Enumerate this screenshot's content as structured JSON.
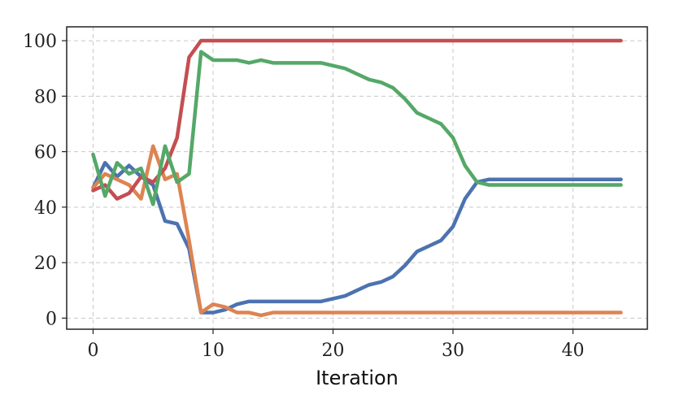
{
  "chart_data": {
    "type": "line",
    "xlabel": "Iteration",
    "ylabel": "",
    "xlim": [
      -2.2,
      46.2
    ],
    "ylim": [
      -4,
      105
    ],
    "xticks": [
      0,
      10,
      20,
      30,
      40
    ],
    "yticks": [
      0,
      20,
      40,
      60,
      80,
      100
    ],
    "grid": true,
    "series": [
      {
        "color": "#4c72b0",
        "x": [
          0,
          1,
          2,
          3,
          4,
          5,
          6,
          7,
          8,
          9,
          10,
          11,
          12,
          13,
          14,
          15,
          16,
          17,
          18,
          19,
          20,
          21,
          22,
          23,
          24,
          25,
          26,
          27,
          28,
          29,
          30,
          31,
          32,
          33,
          34,
          35,
          36,
          37,
          38,
          39,
          40,
          41,
          42,
          43,
          44
        ],
        "values": [
          47,
          56,
          51,
          55,
          51,
          48,
          35,
          34,
          25,
          2,
          2,
          3,
          5,
          6,
          6,
          6,
          6,
          6,
          6,
          6,
          7,
          8,
          10,
          12,
          13,
          15,
          19,
          24,
          26,
          28,
          33,
          43,
          49,
          50,
          50,
          50,
          50,
          50,
          50,
          50,
          50,
          50,
          50,
          50,
          50
        ]
      },
      {
        "color": "#dd8452",
        "x": [
          0,
          1,
          2,
          3,
          4,
          5,
          6,
          7,
          8,
          9,
          10,
          11,
          12,
          13,
          14,
          15,
          16,
          17,
          18,
          19,
          20,
          21,
          22,
          23,
          24,
          25,
          26,
          27,
          28,
          29,
          30,
          31,
          32,
          33,
          34,
          35,
          36,
          37,
          38,
          39,
          40,
          41,
          42,
          43,
          44
        ],
        "values": [
          47,
          52,
          50,
          48,
          43,
          62,
          50,
          52,
          28,
          2,
          5,
          4,
          2,
          2,
          1,
          2,
          2,
          2,
          2,
          2,
          2,
          2,
          2,
          2,
          2,
          2,
          2,
          2,
          2,
          2,
          2,
          2,
          2,
          2,
          2,
          2,
          2,
          2,
          2,
          2,
          2,
          2,
          2,
          2,
          2
        ]
      },
      {
        "color": "#c44e52",
        "x": [
          0,
          1,
          2,
          3,
          4,
          5,
          6,
          7,
          8,
          9,
          10,
          11,
          12,
          13,
          14,
          15,
          16,
          17,
          18,
          19,
          20,
          21,
          22,
          23,
          24,
          25,
          26,
          27,
          28,
          29,
          30,
          31,
          32,
          33,
          34,
          35,
          36,
          37,
          38,
          39,
          40,
          41,
          42,
          43,
          44
        ],
        "values": [
          46,
          48,
          43,
          45,
          51,
          49,
          54,
          65,
          94,
          100,
          100,
          100,
          100,
          100,
          100,
          100,
          100,
          100,
          100,
          100,
          100,
          100,
          100,
          100,
          100,
          100,
          100,
          100,
          100,
          100,
          100,
          100,
          100,
          100,
          100,
          100,
          100,
          100,
          100,
          100,
          100,
          100,
          100,
          100,
          100
        ]
      },
      {
        "color": "#55a868",
        "x": [
          0,
          1,
          2,
          3,
          4,
          5,
          6,
          7,
          8,
          9,
          10,
          11,
          12,
          13,
          14,
          15,
          16,
          17,
          18,
          19,
          20,
          21,
          22,
          23,
          24,
          25,
          26,
          27,
          28,
          29,
          30,
          31,
          32,
          33,
          34,
          35,
          36,
          37,
          38,
          39,
          40,
          41,
          42,
          43,
          44
        ],
        "values": [
          59,
          44,
          56,
          52,
          54,
          41,
          62,
          49,
          52,
          96,
          93,
          93,
          93,
          92,
          93,
          92,
          92,
          92,
          92,
          92,
          91,
          90,
          88,
          86,
          85,
          83,
          79,
          74,
          72,
          70,
          65,
          55,
          49,
          48,
          48,
          48,
          48,
          48,
          48,
          48,
          48,
          48,
          48,
          48,
          48
        ]
      }
    ]
  }
}
